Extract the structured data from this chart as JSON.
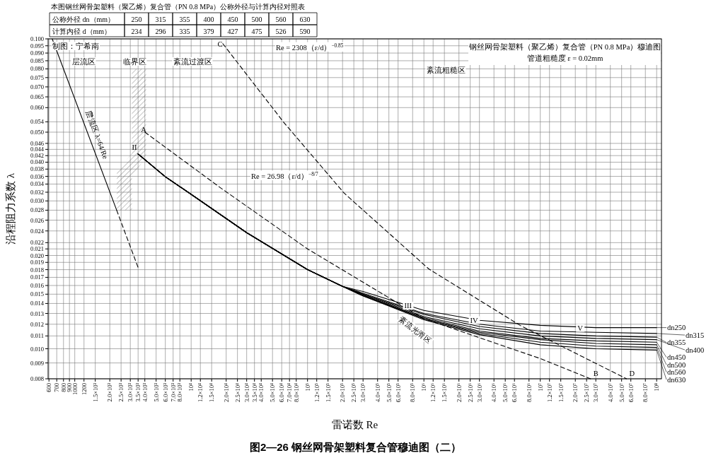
{
  "chart_data": {
    "type": "line",
    "title": "图2—26  钢丝网骨架塑料复合管穆迪图（二）",
    "subtitle": "钢丝网骨架塑料（聚乙烯）复合管（PN 0.8 MPa）穆迪图",
    "xlabel": "雷诺数 Re",
    "ylabel": "沿程阻力系数 λ",
    "log": "xy",
    "grid": true,
    "legend": "right",
    "xlim": [
      590,
      110000000
    ],
    "ylim": [
      0.008,
      0.1
    ],
    "xticks": [
      600,
      700,
      800,
      900,
      1000,
      1200,
      {
        "value": 1500,
        "label": "1.5×10³"
      },
      {
        "value": 2000,
        "label": "2.0×10³"
      },
      {
        "value": 2500,
        "label": "2.5×10³"
      },
      {
        "value": 3000,
        "label": "3.0×10³"
      },
      {
        "value": 3500,
        "label": "3.5×10³"
      },
      {
        "value": 4000,
        "label": "4.0×10³"
      },
      {
        "value": 5000,
        "label": "5.0×10³"
      },
      {
        "value": 6000,
        "label": "6.0×10³"
      },
      {
        "value": 7000,
        "label": "7.0×10³"
      },
      {
        "value": 8000,
        "label": "8.0×10³"
      },
      {
        "value": 10000,
        "label": "10⁴"
      },
      {
        "value": 12000,
        "label": "1.2×10⁴"
      },
      {
        "value": 15000,
        "label": "1.5×10⁴"
      },
      {
        "value": 20000,
        "label": "2.0×10⁴"
      },
      {
        "value": 25000,
        "label": "2.5×10⁴"
      },
      {
        "value": 30000,
        "label": "3.0×10⁴"
      },
      {
        "value": 35000,
        "label": "3.5×10⁴"
      },
      {
        "value": 40000,
        "label": "4.0×10⁴"
      },
      {
        "value": 50000,
        "label": "5.0×10⁴"
      },
      {
        "value": 60000,
        "label": "6.0×10⁴"
      },
      {
        "value": 70000,
        "label": "7.0×10⁴"
      },
      {
        "value": 80000,
        "label": "8.0×10⁴"
      },
      {
        "value": 100000,
        "label": "10⁵"
      },
      {
        "value": 120000,
        "label": "1.2×10⁵"
      },
      {
        "value": 150000,
        "label": "1.5×10⁵"
      },
      {
        "value": 200000,
        "label": "2.0×10⁵"
      },
      {
        "value": 250000,
        "label": "2.5×10⁵"
      },
      {
        "value": 300000,
        "label": "3.0×10⁵"
      },
      {
        "value": 400000,
        "label": "4.0×10⁵"
      },
      {
        "value": 500000,
        "label": "5.0×10⁵"
      },
      {
        "value": 600000,
        "label": "6.0×10⁵"
      },
      {
        "value": 800000,
        "label": "8.0×10⁵"
      },
      {
        "value": 1000000,
        "label": "10⁶"
      },
      {
        "value": 1200000,
        "label": "1.2×10⁶"
      },
      {
        "value": 1500000,
        "label": "1.5×10⁶"
      },
      {
        "value": 2000000,
        "label": "2.0×10⁶"
      },
      {
        "value": 2500000,
        "label": "2.5×10⁶"
      },
      {
        "value": 3000000,
        "label": "3.0×10⁶"
      },
      {
        "value": 4000000,
        "label": "4.0×10⁶"
      },
      {
        "value": 5000000,
        "label": "5.0×10⁶"
      },
      {
        "value": 6000000,
        "label": "6.0×10⁶"
      },
      {
        "value": 8000000,
        "label": "8.0×10⁶"
      },
      {
        "value": 10000000,
        "label": "10⁷"
      },
      {
        "value": 12000000,
        "label": "1.2×10⁷"
      },
      {
        "value": 15000000,
        "label": "1.5×10⁷"
      },
      {
        "value": 20000000,
        "label": "2.0×10⁷"
      },
      {
        "value": 25000000,
        "label": "2.5×10⁷"
      },
      {
        "value": 30000000,
        "label": "3.0×10⁷"
      },
      {
        "value": 40000000,
        "label": "4.0×10⁷"
      },
      {
        "value": 50000000,
        "label": "5.0×10⁷"
      },
      {
        "value": 60000000,
        "label": "6.0×10⁷"
      },
      {
        "value": 80000000,
        "label": "8.0×10⁷"
      },
      {
        "value": 100000000,
        "label": "10⁸"
      }
    ],
    "yticks": [
      {
        "value": 0.1,
        "label": "0.100"
      },
      0.095,
      {
        "value": 0.09,
        "label": "0.090"
      },
      0.085,
      {
        "value": 0.08,
        "label": "0.080"
      },
      0.075,
      {
        "value": 0.07,
        "label": "0.070"
      },
      0.065,
      {
        "value": 0.06,
        "label": "0.060"
      },
      0.054,
      {
        "value": 0.05,
        "label": "0.050"
      },
      0.046,
      0.044,
      0.042,
      {
        "value": 0.04,
        "label": "0.040"
      },
      0.038,
      0.036,
      0.034,
      0.032,
      {
        "value": 0.03,
        "label": "0.030"
      },
      0.028,
      0.026,
      0.024,
      0.022,
      0.021,
      {
        "value": 0.02,
        "label": "0.020"
      },
      0.019,
      0.018,
      0.017,
      0.016,
      0.015,
      0.014,
      0.013,
      0.012,
      0.011,
      {
        "value": 0.01,
        "label": "0.010"
      },
      0.009,
      0.008
    ],
    "series": [
      {
        "color": "#000000",
        "line_style": "solid",
        "x": [
          640,
          2290
        ],
        "values": [
          0.1,
          0.028
        ]
      },
      {
        "color": "#000000",
        "line_style": "dashed",
        "x": [
          2290,
          3500
        ],
        "values": [
          0.028,
          0.0183
        ]
      },
      {
        "name": "dn250",
        "color": "#000000",
        "line_style": "solid",
        "x": [
          3500,
          6000,
          10000,
          30000,
          100000,
          200000,
          300000,
          1000000,
          3000000,
          10000000,
          30000000,
          100000000
        ],
        "values": [
          0.0425,
          0.0359,
          0.0315,
          0.0237,
          0.018,
          0.0159,
          0.0153,
          0.0133,
          0.01235,
          0.0119,
          0.0117,
          0.0117
        ]
      },
      {
        "name": "dn315",
        "color": "#000000",
        "line_style": "solid",
        "x": [
          3500,
          6000,
          10000,
          30000,
          100000,
          200000,
          300000,
          1000000,
          3000000,
          10000000,
          30000000,
          100000000
        ],
        "values": [
          0.0425,
          0.0359,
          0.0315,
          0.0237,
          0.018,
          0.0159,
          0.0151,
          0.013,
          0.012,
          0.0114,
          0.0113,
          0.0112
        ]
      },
      {
        "name": "dn355",
        "color": "#000000",
        "line_style": "solid",
        "x": [
          3500,
          6000,
          10000,
          30000,
          100000,
          200000,
          300000,
          1000000,
          3000000,
          10000000,
          30000000,
          100000000
        ],
        "values": [
          0.0425,
          0.0359,
          0.0315,
          0.0237,
          0.018,
          0.0159,
          0.015,
          0.0129,
          0.0118,
          0.0112,
          0.011,
          0.0109
        ]
      },
      {
        "name": "dn400",
        "color": "#000000",
        "line_style": "solid",
        "x": [
          3500,
          6000,
          10000,
          30000,
          100000,
          200000,
          300000,
          1000000,
          3000000,
          10000000,
          30000000,
          100000000
        ],
        "values": [
          0.0425,
          0.0359,
          0.0315,
          0.0237,
          0.018,
          0.0159,
          0.015,
          0.0127,
          0.0116,
          0.011,
          0.0108,
          0.0107
        ]
      },
      {
        "name": "dn450",
        "color": "#000000",
        "line_style": "solid",
        "x": [
          3500,
          6000,
          10000,
          30000,
          100000,
          200000,
          300000,
          1000000,
          3000000,
          10000000,
          30000000,
          100000000
        ],
        "values": [
          0.0425,
          0.0359,
          0.0315,
          0.0237,
          0.018,
          0.0159,
          0.0149,
          0.0126,
          0.0114,
          0.0108,
          0.0106,
          0.0105
        ]
      },
      {
        "name": "dn500",
        "color": "#000000",
        "line_style": "solid",
        "x": [
          3500,
          6000,
          10000,
          30000,
          100000,
          200000,
          300000,
          1000000,
          3000000,
          10000000,
          30000000,
          100000000
        ],
        "values": [
          0.0425,
          0.0359,
          0.0315,
          0.0237,
          0.018,
          0.0159,
          0.0149,
          0.0125,
          0.0113,
          0.0107,
          0.0104,
          0.0103
        ]
      },
      {
        "name": "dn560",
        "color": "#000000",
        "line_style": "solid",
        "x": [
          3500,
          6000,
          10000,
          30000,
          100000,
          200000,
          300000,
          1000000,
          3000000,
          10000000,
          30000000,
          100000000
        ],
        "values": [
          0.0425,
          0.0359,
          0.0315,
          0.0237,
          0.018,
          0.0159,
          0.0148,
          0.0125,
          0.0112,
          0.0105,
          0.0102,
          0.0101
        ]
      },
      {
        "name": "dn630",
        "color": "#000000",
        "line_style": "solid",
        "x": [
          3500,
          6000,
          10000,
          30000,
          100000,
          200000,
          300000,
          1000000,
          3000000,
          10000000,
          30000000,
          100000000
        ],
        "values": [
          0.0425,
          0.0359,
          0.0315,
          0.0237,
          0.018,
          0.0159,
          0.0148,
          0.0124,
          0.0111,
          0.0103,
          0.01,
          0.0099
        ]
      },
      {
        "color": "#000000",
        "line_style": "dashed",
        "x": [
          4000,
          18000,
          100000,
          1000000,
          10000000,
          27000000
        ],
        "values": [
          0.05,
          0.033,
          0.021,
          0.0125,
          0.0093,
          0.008
        ]
      },
      {
        "color": "#000000",
        "line_style": "dashed",
        "x": [
          18700,
          62400,
          206000,
          1100000,
          6700000,
          55000000
        ],
        "values": [
          0.0965,
          0.0538,
          0.0318,
          0.0181,
          0.0119,
          0.008
        ]
      }
    ],
    "annotations": [
      "本图钢丝网骨架塑料（聚乙烯）复合管（PN 0.8 MPa）公称外径与计算内径对照表",
      "公称外径 dn（mm）",
      "250",
      "315",
      "355",
      "400",
      "450",
      "500",
      "560",
      "630",
      "计算内径 d（mm）",
      "234",
      "296",
      "335",
      "379",
      "427",
      "475",
      "526",
      "590",
      "制图：宁希南",
      "层流区",
      "临界区",
      "紊流过渡区",
      "紊流粗糙区",
      "Re = 2308（ε/d）$^{−0.85}$",
      "Re = 26.98（ε/d）$^{−8/7}$",
      "紊流光滑区",
      "管道粗糙度 ε = 0.02mm",
      "I",
      "II",
      "A",
      "C",
      {
        "text": "层流区 λ=64/Re",
        "x": 1333,
        "y": 0.048
      },
      {
        "text": "III",
        "x": 730000,
        "y": 0.0138
      },
      {
        "text": "IV",
        "x": 2700000,
        "y": 0.0124
      },
      {
        "text": "V",
        "x": 22000000,
        "y": 0.0117
      },
      {
        "text": "B",
        "x": 27000000,
        "y": 0.008
      },
      {
        "text": "D",
        "x": 55000000,
        "y": 0.008
      }
    ]
  }
}
